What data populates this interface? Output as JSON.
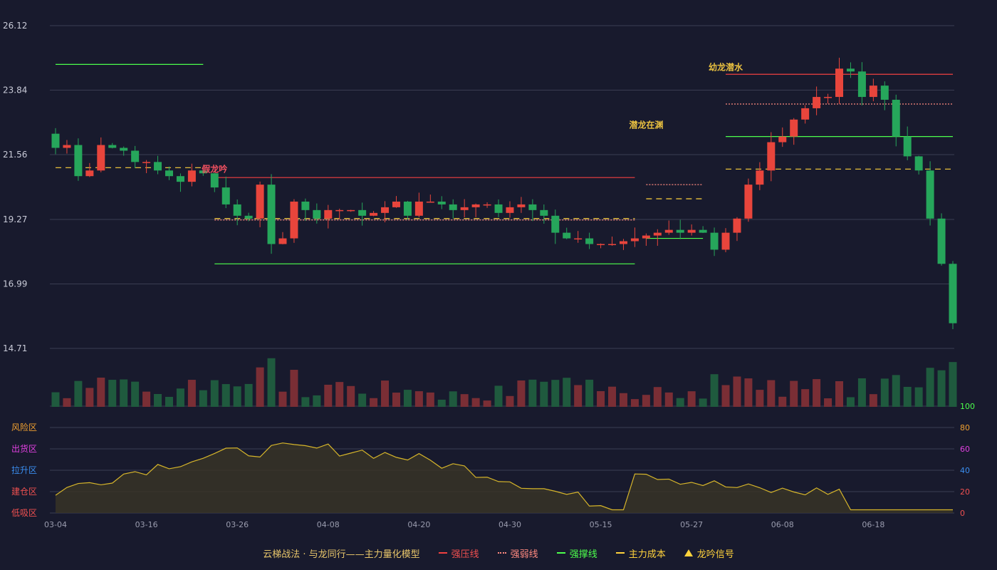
{
  "legend": {
    "title": "云梯战法 · 与龙同行——主力量化模型",
    "items": [
      {
        "label": "强压线",
        "color": "#f04040"
      },
      {
        "label": "强弱线",
        "color": "#ff8a80"
      },
      {
        "label": "强撑线",
        "color": "#4cff4c"
      },
      {
        "label": "主力成本",
        "color": "#ffd23c"
      },
      {
        "label": "龙吟信号",
        "color": "#ffd23c"
      }
    ]
  },
  "colors": {
    "up": "#e8453c",
    "down": "#26a65b",
    "ma": "#d6b52a",
    "bg": "#181a2d",
    "grid": "#3a3d52"
  },
  "chart_data": {
    "type": "candlestick",
    "title": "",
    "price_ylim": [
      14.71,
      26.12
    ],
    "price_ticks": [
      "26.12",
      "23.84",
      "21.56",
      "19.27",
      "16.99",
      "14.71"
    ],
    "x_tick_labels": [
      {
        "i": 0,
        "label": "03-04"
      },
      {
        "i": 8,
        "label": "03-16"
      },
      {
        "i": 16,
        "label": "03-26"
      },
      {
        "i": 24,
        "label": "04-08"
      },
      {
        "i": 32,
        "label": "04-20"
      },
      {
        "i": 40,
        "label": "04-30"
      },
      {
        "i": 48,
        "label": "05-15"
      },
      {
        "i": 56,
        "label": "05-27"
      },
      {
        "i": 64,
        "label": "06-08"
      },
      {
        "i": 72,
        "label": "06-18"
      }
    ],
    "candles": [
      [
        21.8,
        21.6,
        21.9,
        20.9,
        20.8,
        21.9,
        21.0,
        21.0
      ],
      [
        21.9,
        21.5,
        21.8,
        21.6,
        21.7,
        21.6,
        21.3,
        21.4
      ],
      [
        21.3,
        21.2,
        21.0,
        21.1,
        20.8,
        21.3,
        20.6,
        20.9
      ],
      [
        21.0,
        20.6,
        20.9,
        20.6,
        20.4,
        20.1,
        19.8,
        19.4
      ],
      [
        19.4,
        19.2,
        19.3,
        19.9,
        20.5,
        19.5,
        18.4,
        18.6
      ],
      [
        18.6,
        18.8,
        19.9,
        19.8,
        19.6,
        19.4,
        19.3,
        19.7
      ],
      [
        19.6,
        19.5,
        19.6,
        19.7,
        19.6,
        19.9,
        19.4,
        19.8
      ],
      [
        19.5,
        19.4,
        19.7,
        19.8,
        19.9,
        19.4,
        19.4,
        19.8
      ],
      [
        19.9,
        19.8,
        19.9,
        19.6,
        19.8,
        19.8,
        19.6,
        19.5
      ],
      [
        19.7,
        19.6,
        19.8,
        19.8,
        19.8,
        19.7,
        19.5,
        19.7
      ],
      [
        19.7,
        19.6,
        19.8,
        19.7,
        19.6,
        19.4,
        19.4,
        18.6
      ],
      [
        18.8,
        18.7,
        18.6,
        18.4,
        18.6,
        18.4,
        18.4,
        18.4
      ],
      [
        18.4,
        18.4,
        18.4,
        18.5,
        18.5,
        18.6,
        18.6,
        18.7
      ],
      [
        18.7,
        18.7,
        18.8,
        18.9,
        18.9,
        19.0,
        18.8,
        18.9
      ],
      [
        18.9,
        18.8,
        18.8,
        18.3,
        18.2,
        18.4,
        18.8,
        19.3
      ],
      [
        19.3,
        20.7,
        20.5,
        20.5,
        21.0,
        21.9,
        22.0,
        22.2
      ],
      [
        22.2,
        22.4,
        22.8,
        22.6,
        23.2,
        23.9,
        23.6,
        23.5
      ],
      [
        23.6,
        24.2,
        24.6,
        25.0,
        24.5,
        23.6,
        23.6,
        23.8
      ],
      [
        24.0,
        23.7,
        23.5,
        22.9,
        22.2,
        22.8,
        21.5,
        21.2
      ],
      [
        21.0,
        20.3,
        19.3,
        18.9,
        17.7,
        16.5,
        15.6,
        15.1
      ]
    ],
    "volume_note": "volume bars in relative units",
    "indicator_ylim": [
      0,
      100
    ],
    "indicator_ticks": [
      "100",
      "80",
      "60",
      "40",
      "20",
      "0"
    ],
    "zone_labels": [
      "风险区",
      "出货区",
      "拉升区",
      "建仓区",
      "低吸区"
    ],
    "zone_colors": [
      "#f0a030",
      "#e040e0",
      "#3a8ef0",
      "#f05050",
      "#f05050"
    ],
    "annotations": [
      {
        "text": "假龙吟",
        "color": "#f05060"
      },
      {
        "text": "潜龙在渊",
        "color": "#e8c040"
      },
      {
        "text": "幼龙潜水",
        "color": "#e8c040"
      }
    ]
  }
}
